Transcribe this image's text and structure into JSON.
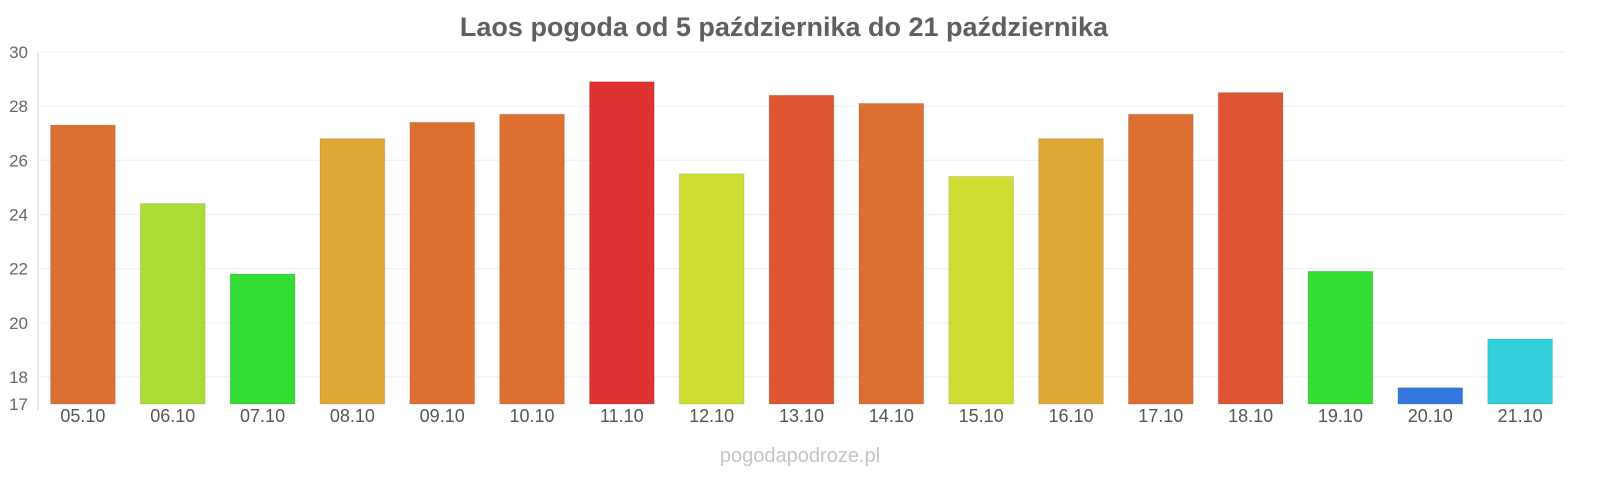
{
  "chart_data": {
    "type": "bar",
    "title": "Laos pogoda od 5 października do 21 października",
    "categories": [
      "05.10",
      "06.10",
      "07.10",
      "08.10",
      "09.10",
      "10.10",
      "11.10",
      "12.10",
      "13.10",
      "14.10",
      "15.10",
      "16.10",
      "17.10",
      "18.10",
      "19.10",
      "20.10",
      "21.10"
    ],
    "values": [
      27.3,
      24.4,
      21.8,
      26.8,
      27.4,
      27.7,
      28.9,
      25.5,
      28.4,
      28.1,
      25.4,
      26.8,
      27.7,
      28.5,
      21.9,
      17.6,
      19.4
    ],
    "colors": [
      "#dd6f32",
      "#aadd33",
      "#33dd33",
      "#dda833",
      "#dd6f32",
      "#dd6f32",
      "#dd3333",
      "#cfdd33",
      "#dd5533",
      "#dd6f32",
      "#cfdd33",
      "#dda833",
      "#dd6f32",
      "#dd5533",
      "#33dd33",
      "#3377dd",
      "#33cfdd"
    ],
    "ylim": [
      17,
      30
    ],
    "yticks": [
      17,
      18,
      20,
      22,
      24,
      26,
      28,
      30
    ],
    "grid": true,
    "legend": "none"
  },
  "watermark": "pogodapodroze.pl"
}
